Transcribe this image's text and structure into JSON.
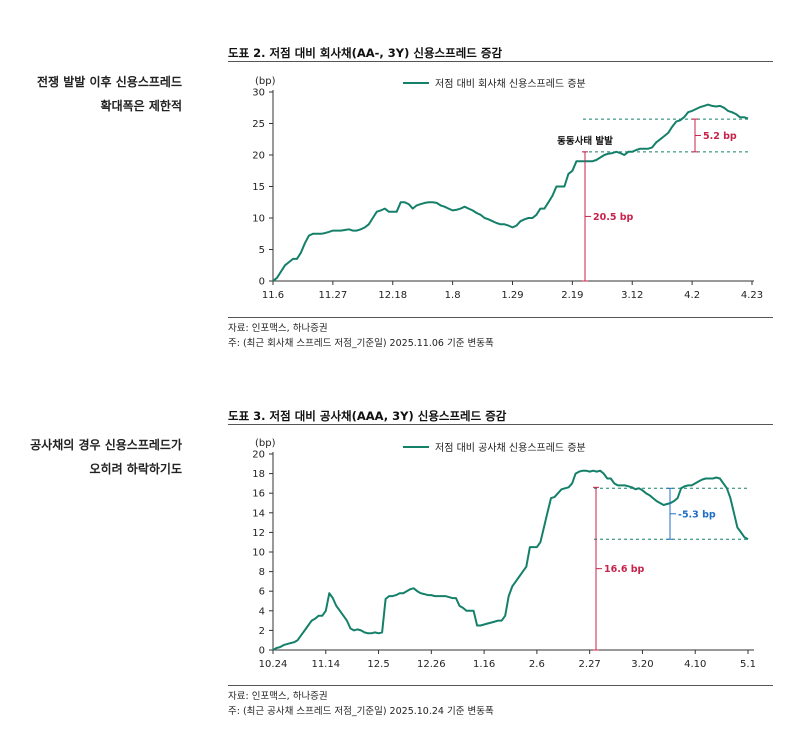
{
  "section1": {
    "side_line1": "전쟁 발발 이후 신용스프레드",
    "side_line2": "확대폭은 제한적",
    "title": "도표 2. 저점 대비 회사채(AA-, 3Y) 신용스프레드 증감",
    "source": "자료: 인포맥스, 하나증권",
    "note": "주: (최근 회사채 스프레드 저점_기준일) 2025.11.06 기준 변동폭"
  },
  "section2": {
    "side_line1": "공사채의 경우 신용스프레드가",
    "side_line2": "오히려 하락하기도",
    "title": "도표 3. 저점 대비 공사채(AAA, 3Y) 신용스프레드 증감",
    "source": "자료: 인포맥스, 하나증권",
    "note": "주: (최근 공사채 스프레드 저점_기준일) 2025.10.24 기준 변동폭"
  },
  "chart_data": [
    {
      "type": "line",
      "unit_label": "(bp)",
      "ylim": [
        0,
        30
      ],
      "yticks": [
        0,
        5,
        10,
        15,
        20,
        25,
        30
      ],
      "xtick_labels": [
        "11.6",
        "11.27",
        "12.18",
        "1.8",
        "1.29",
        "2.19",
        "3.12",
        "4.2",
        "4.23"
      ],
      "n_points": 120,
      "tick_every": 15,
      "series": [
        {
          "name": "저점 대비 회사채 신용스프레드 증분",
          "color": "#15806a",
          "values": [
            0,
            0.5,
            1.5,
            2.5,
            3,
            3.5,
            3.5,
            4.5,
            6,
            7.2,
            7.5,
            7.5,
            7.5,
            7.6,
            7.8,
            8,
            8,
            8,
            8.1,
            8.2,
            8,
            8,
            8.2,
            8.5,
            9,
            10,
            11,
            11.2,
            11.5,
            11,
            11,
            11,
            12.5,
            12.5,
            12.2,
            11.5,
            12,
            12.2,
            12.4,
            12.5,
            12.5,
            12.4,
            12,
            11.8,
            11.5,
            11.2,
            11.3,
            11.5,
            11.8,
            11.5,
            11.2,
            10.8,
            10.5,
            10,
            9.8,
            9.5,
            9.2,
            9,
            9,
            8.8,
            8.5,
            8.8,
            9.5,
            9.8,
            10,
            10,
            10.5,
            11.5,
            11.5,
            12.5,
            13.5,
            15,
            15,
            15,
            17,
            17.5,
            19,
            19,
            19,
            19,
            19,
            19.2,
            19.6,
            20,
            20.2,
            20.3,
            20.5,
            20.3,
            20,
            20.5,
            20.5,
            20.8,
            21,
            21,
            21,
            21.2,
            22,
            22.5,
            23,
            23.5,
            24.5,
            25.3,
            25.5,
            26,
            26.8,
            27,
            27.3,
            27.6,
            27.8,
            28,
            27.8,
            27.7,
            27.8,
            27.5,
            27,
            26.8,
            26.5,
            26,
            26,
            25.8
          ]
        }
      ],
      "event_label": "동동사태 발발",
      "annotations": [
        {
          "label": "20.5 bp",
          "from": 0,
          "to": 20.5,
          "color": "#c8234b"
        },
        {
          "label": "5.2 bp",
          "from": 20.5,
          "to": 25.7,
          "color": "#c8234b"
        }
      ],
      "dashed_levels": [
        20.5,
        25.7
      ]
    },
    {
      "type": "line",
      "unit_label": "(bp)",
      "ylim": [
        0,
        20
      ],
      "yticks": [
        0,
        2,
        4,
        6,
        8,
        10,
        12,
        14,
        16,
        18,
        20
      ],
      "xtick_labels": [
        "10.24",
        "11.14",
        "12.5",
        "12.26",
        "1.16",
        "2.6",
        "2.27",
        "3.20",
        "4.10",
        "5.1"
      ],
      "n_points": 136,
      "tick_every": 15,
      "series": [
        {
          "name": "저점 대비 공사채 신용스프레드 증분",
          "color": "#15806a",
          "values": [
            0,
            0.2,
            0.3,
            0.5,
            0.6,
            0.7,
            0.8,
            1,
            1.5,
            2,
            2.5,
            3,
            3.2,
            3.5,
            3.5,
            4,
            5.8,
            5.3,
            4.5,
            4,
            3.5,
            3,
            2.2,
            2,
            2.1,
            2,
            1.8,
            1.7,
            1.7,
            1.8,
            1.7,
            1.8,
            5.2,
            5.5,
            5.5,
            5.6,
            5.8,
            5.8,
            6,
            6.2,
            6.3,
            6,
            5.8,
            5.7,
            5.6,
            5.6,
            5.5,
            5.5,
            5.5,
            5.5,
            5.4,
            5.3,
            5.3,
            4.5,
            4.3,
            4,
            4,
            4,
            2.5,
            2.5,
            2.6,
            2.7,
            2.8,
            2.9,
            3,
            3,
            3.5,
            5.5,
            6.5,
            7,
            7.5,
            8,
            8.5,
            10.5,
            10.5,
            10.5,
            11,
            12.5,
            14,
            15.5,
            15.6,
            16,
            16.4,
            16.5,
            16.6,
            17,
            18,
            18.2,
            18.3,
            18.3,
            18.2,
            18.3,
            18.2,
            18.3,
            18,
            17.5,
            17.5,
            17,
            16.8,
            16.8,
            16.8,
            16.7,
            16.6,
            16.4,
            16.5,
            16.3,
            16,
            15.8,
            15.5,
            15.2,
            15,
            14.8,
            14.9,
            15,
            15.2,
            15.5,
            16.5,
            16.7,
            16.8,
            16.8,
            17,
            17.2,
            17.4,
            17.5,
            17.5,
            17.5,
            17.6,
            17.5,
            17,
            16.5,
            15.5,
            14,
            12.5,
            12,
            11.5,
            11.3
          ]
        }
      ],
      "annotations": [
        {
          "label": "16.6 bp",
          "from": 0,
          "to": 16.6,
          "color": "#c8234b"
        },
        {
          "label": "-5.3 bp",
          "from": 11.3,
          "to": 16.5,
          "color": "#1f6fc5"
        }
      ],
      "dashed_levels": [
        11.3,
        16.5
      ]
    }
  ]
}
